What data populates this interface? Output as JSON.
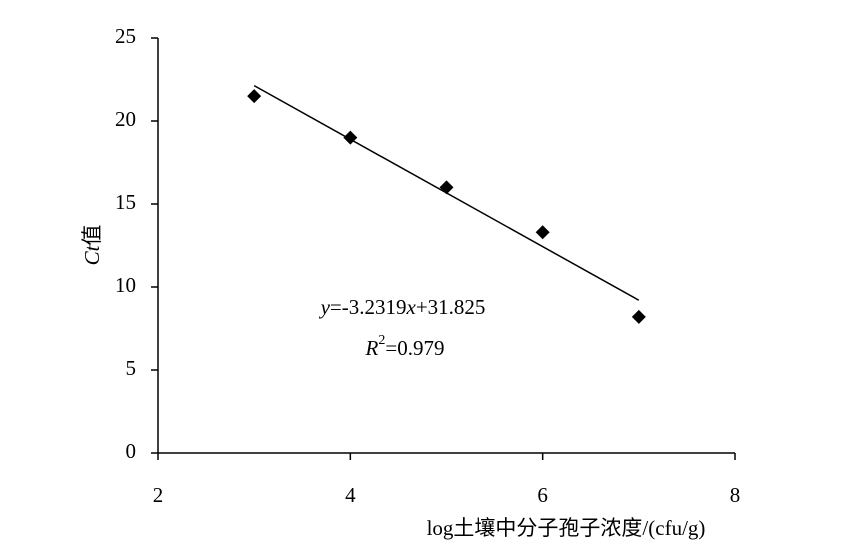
{
  "chart_data": {
    "type": "scatter",
    "x": [
      3,
      4,
      5,
      6,
      7
    ],
    "values": [
      21.5,
      19.0,
      16.0,
      13.3,
      8.2
    ],
    "color": "#000000",
    "xlabel": "log土壤中分子孢子浓度/(cfu/g)",
    "ylabel": [
      "Ct",
      "值"
    ],
    "xlim": [
      2,
      8
    ],
    "xticks": [
      2,
      4,
      6,
      8
    ],
    "ylim": [
      0,
      25
    ],
    "yticks": [
      0,
      5,
      10,
      15,
      20,
      25
    ],
    "grid": false,
    "trendline": {
      "slope": -3.2319,
      "intercept": 31.825,
      "x": [
        3,
        7
      ],
      "equation": [
        "y",
        "=-3.2319",
        "x",
        "+31.825"
      ],
      "r2": [
        "R",
        "2",
        "=0.979"
      ]
    }
  }
}
